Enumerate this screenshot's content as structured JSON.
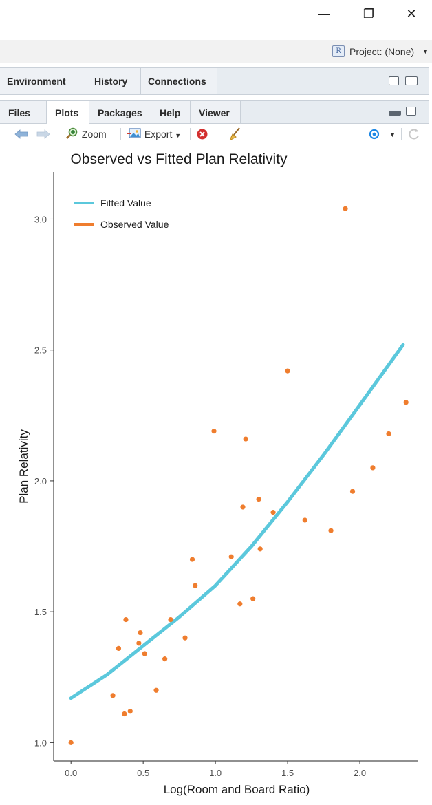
{
  "window": {
    "minimize_glyph": "—",
    "maximize_glyph": "❐",
    "close_glyph": "✕"
  },
  "project": {
    "label": "Project: (None)",
    "icon_text": "R"
  },
  "top_tabs": [
    {
      "label": "Environment"
    },
    {
      "label": "History"
    },
    {
      "label": "Connections"
    }
  ],
  "bottom_tabs": [
    {
      "label": "Files"
    },
    {
      "label": "Plots"
    },
    {
      "label": "Packages"
    },
    {
      "label": "Help"
    },
    {
      "label": "Viewer"
    }
  ],
  "toolbar": {
    "zoom_label": "Zoom",
    "export_label": "Export"
  },
  "icons": {
    "back": "back-arrow-icon",
    "forward": "forward-arrow-icon",
    "zoom": "zoom-magnifier-icon",
    "export": "export-image-icon",
    "delete": "delete-plot-icon",
    "clear": "broom-icon",
    "publish": "publish-icon",
    "refresh": "refresh-icon"
  },
  "chart_data": {
    "type": "scatter",
    "title": "Observed vs Fitted Plan Relativity",
    "xlabel": "Log(Room and Board Ratio)",
    "ylabel": "Plan Relativity",
    "xlim": [
      -0.12,
      2.4
    ],
    "ylim": [
      0.93,
      3.18
    ],
    "x_ticks": [
      0.0,
      0.5,
      1.0,
      1.5,
      2.0
    ],
    "x_tick_labels": [
      "0.0",
      "0.5",
      "1.0",
      "1.5",
      "2.0"
    ],
    "y_ticks": [
      1.0,
      1.5,
      2.0,
      2.5,
      3.0
    ],
    "y_tick_labels": [
      "1.0",
      "1.5",
      "2.0",
      "2.5",
      "3.0"
    ],
    "grid": false,
    "legend_position": "top-left",
    "colors": {
      "fitted": "#5bc8dc",
      "observed": "#ef7d2e"
    },
    "series": [
      {
        "name": "Fitted Value",
        "style": "line",
        "x": [
          0.0,
          0.25,
          0.5,
          0.75,
          1.0,
          1.25,
          1.5,
          1.75,
          2.0,
          2.3
        ],
        "y": [
          1.17,
          1.26,
          1.37,
          1.48,
          1.6,
          1.75,
          1.92,
          2.1,
          2.29,
          2.52
        ]
      },
      {
        "name": "Observed Value",
        "style": "points",
        "x": [
          0.0,
          0.29,
          0.33,
          0.37,
          0.38,
          0.41,
          0.47,
          0.48,
          0.51,
          0.59,
          0.65,
          0.69,
          0.79,
          0.84,
          0.86,
          0.99,
          1.11,
          1.17,
          1.19,
          1.21,
          1.26,
          1.3,
          1.31,
          1.4,
          1.5,
          1.62,
          1.8,
          1.9,
          1.95,
          2.09,
          2.2,
          2.32
        ],
        "y": [
          1.0,
          1.18,
          1.36,
          1.11,
          1.47,
          1.12,
          1.38,
          1.42,
          1.34,
          1.2,
          1.32,
          1.47,
          1.4,
          1.7,
          1.6,
          2.19,
          1.71,
          1.53,
          1.9,
          2.16,
          1.55,
          1.93,
          1.74,
          1.88,
          2.42,
          1.85,
          1.81,
          3.04,
          1.96,
          2.05,
          2.18,
          2.3
        ]
      }
    ]
  }
}
